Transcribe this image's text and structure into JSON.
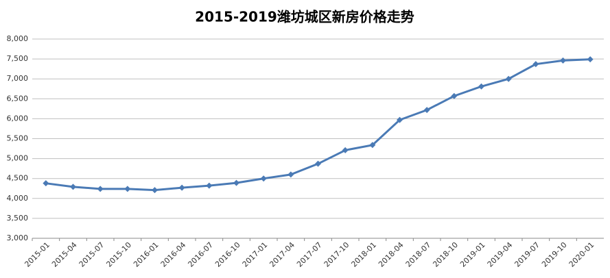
{
  "chart_data": {
    "type": "line",
    "title": "2015-2019潍坊城区新房价格走势",
    "categories": [
      "2015-01",
      "2015-04",
      "2015-07",
      "2015-10",
      "2016-01",
      "2016-04",
      "2016-07",
      "2016-10",
      "2017-01",
      "2017-04",
      "2017-07",
      "2017-10",
      "2018-01",
      "2018-04",
      "2018-07",
      "2018-10",
      "2019-01",
      "2019-04",
      "2019-07",
      "2019-10",
      "2020-01"
    ],
    "values": [
      4380,
      4290,
      4240,
      4240,
      4210,
      4270,
      4320,
      4390,
      4500,
      4600,
      4870,
      5210,
      5340,
      5970,
      6220,
      6570,
      6810,
      7000,
      7370,
      7460,
      7490
    ],
    "color": "#4a7ab5",
    "ylim": [
      3000,
      8000
    ],
    "yticks": [
      {
        "value": 3000,
        "label": "3,000"
      },
      {
        "value": 3500,
        "label": "3,500"
      },
      {
        "value": 4000,
        "label": "4,000"
      },
      {
        "value": 4500,
        "label": "4,500"
      },
      {
        "value": 5000,
        "label": "5,000"
      },
      {
        "value": 5500,
        "label": "5,500"
      },
      {
        "value": 6000,
        "label": "6,000"
      },
      {
        "value": 6500,
        "label": "6,500"
      },
      {
        "value": 7000,
        "label": "7,000"
      },
      {
        "value": 7500,
        "label": "7,500"
      },
      {
        "value": 8000,
        "label": "8,000"
      }
    ],
    "grid": true
  }
}
